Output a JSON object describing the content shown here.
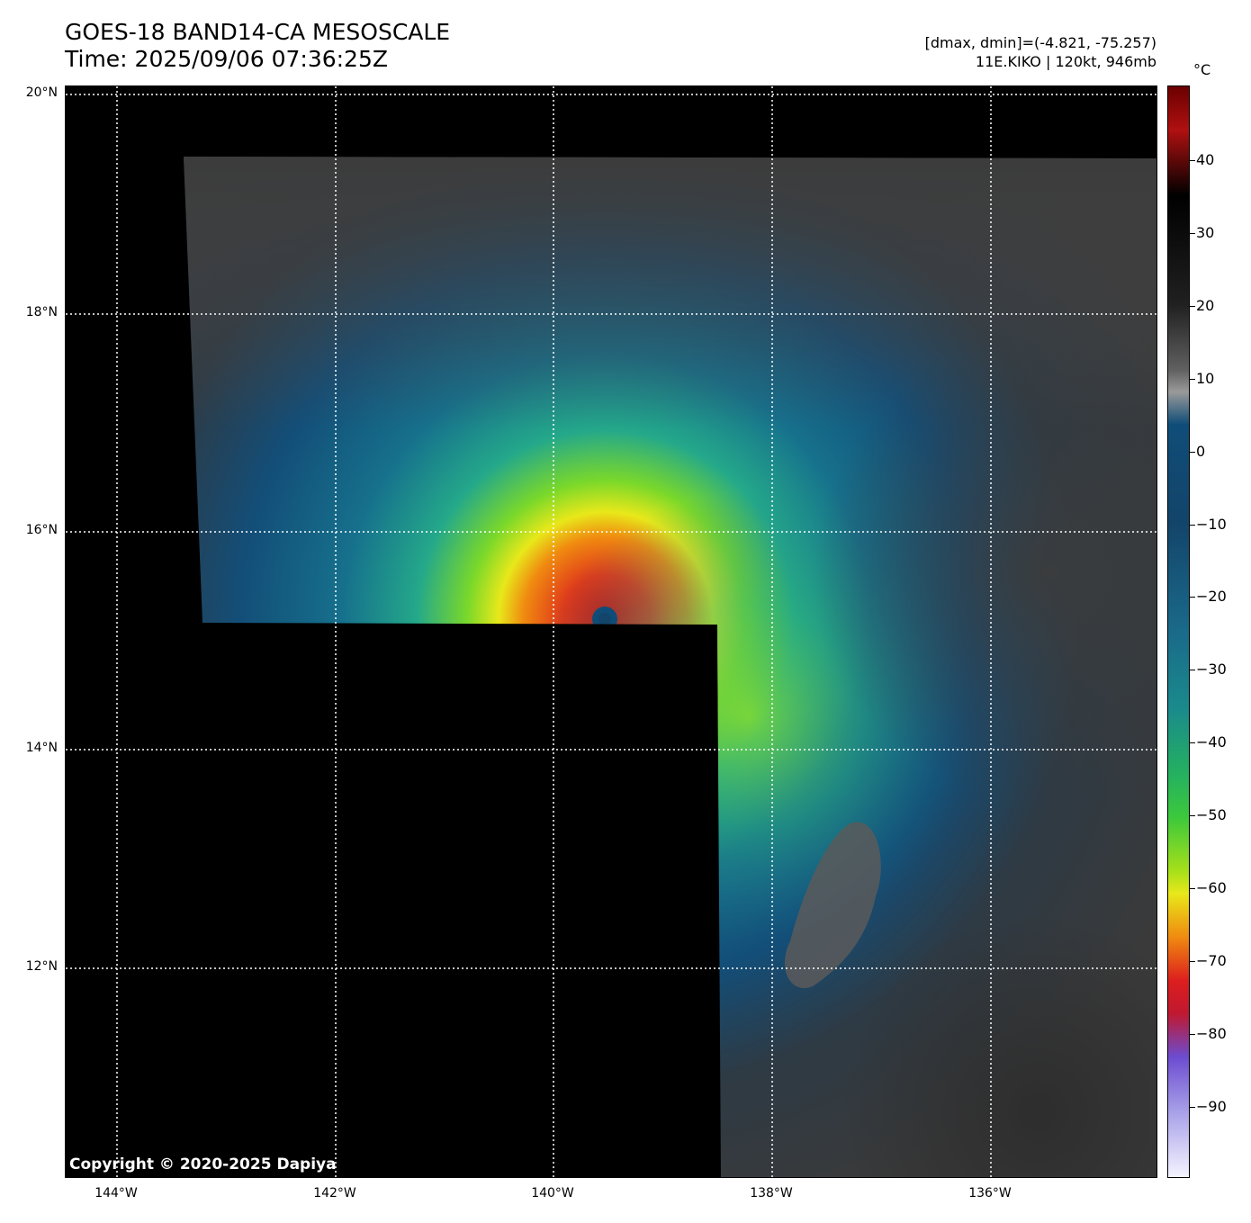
{
  "header": {
    "title_line1": "GOES-18 BAND14-CA MESOSCALE",
    "title_line2": "Time: 2025/09/06 07:36:25Z",
    "range_text": "[dmax, dmin]=(-4.821, -75.257)",
    "storm_text": "11E.KIKO | 120kt, 946mb"
  },
  "map": {
    "lat_labels": [
      "20°N",
      "18°N",
      "16°N",
      "14°N",
      "12°N"
    ],
    "lon_labels": [
      "144°W",
      "142°W",
      "140°W",
      "138°W",
      "136°W"
    ],
    "copyright": "Copyright © 2020-2025 Dapiya",
    "eye_center": {
      "lat": "15.2°N",
      "lon": "139.5°W"
    }
  },
  "colorbar": {
    "unit": "°C",
    "tick_labels": [
      "40",
      "30",
      "20",
      "10",
      "0",
      "−10",
      "−20",
      "−30",
      "−40",
      "−50",
      "−60",
      "−70",
      "−80",
      "−90"
    ],
    "colors": {
      "warm_top": "#6b0000",
      "black": "#000000",
      "gray": "#9a9a9a",
      "blue": "#0f4d78",
      "teal": "#1a8a8c",
      "green": "#3cc83c",
      "yellow": "#e8e81a",
      "orange": "#f08a10",
      "red": "#dc1e1e",
      "purple": "#6c4cd0",
      "white": "#f4f4ff"
    }
  }
}
